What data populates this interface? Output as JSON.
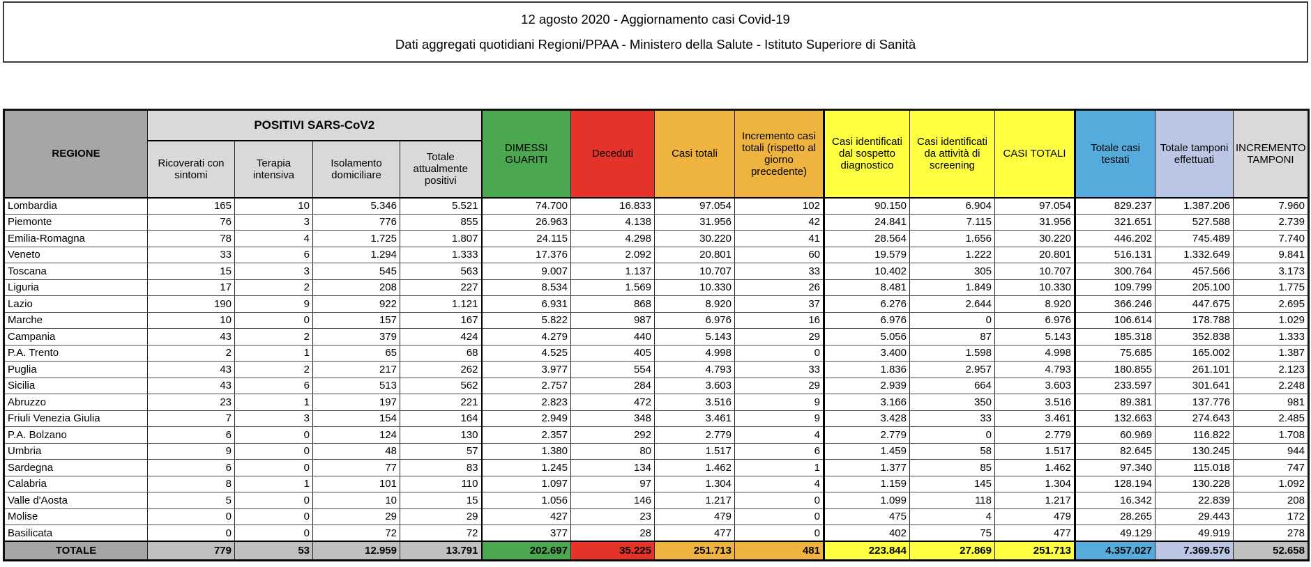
{
  "title": {
    "line1": "12 agosto 2020 - Aggiornamento casi Covid-19",
    "line2": "Dati aggregati quotidiani Regioni/PPAA - Ministero della Salute - Istituto Superiore di Sanità"
  },
  "colors": {
    "green": "#4CA751",
    "red": "#E5332A",
    "orange": "#EFB440",
    "yellow": "#FDFF40",
    "blue": "#55ACDC",
    "lavender": "#BAC6E3",
    "hdrgray": "#D9D9D9",
    "darkgray": "#A6A6A6",
    "totgray": "#BFBFBF"
  },
  "chart_data": {
    "type": "table",
    "title": "12 agosto 2020 - Aggiornamento casi Covid-19",
    "group_header": "POSITIVI SARS-CoV2",
    "columns": [
      {
        "label": "REGIONE"
      },
      {
        "label": "Ricoverati con sintomi"
      },
      {
        "label": "Terapia intensiva"
      },
      {
        "label": "Isolamento domiciliare"
      },
      {
        "label": "Totale attualmente positivi"
      },
      {
        "label": "DIMESSI GUARITI"
      },
      {
        "label": "Deceduti"
      },
      {
        "label": "Casi totali"
      },
      {
        "label": "Incremento casi totali (rispetto al giorno precedente)"
      },
      {
        "label": "Casi identificati dal sospetto diagnostico"
      },
      {
        "label": "Casi identificati da attività di screening"
      },
      {
        "label": "CASI TOTALI"
      },
      {
        "label": "Totale casi testati"
      },
      {
        "label": "Totale tamponi effettuati"
      },
      {
        "label": "INCREMENTO TAMPONI"
      }
    ],
    "rows": [
      [
        "Lombardia",
        "165",
        "10",
        "5.346",
        "5.521",
        "74.700",
        "16.833",
        "97.054",
        "102",
        "90.150",
        "6.904",
        "97.054",
        "829.237",
        "1.387.206",
        "7.960"
      ],
      [
        "Piemonte",
        "76",
        "3",
        "776",
        "855",
        "26.963",
        "4.138",
        "31.956",
        "42",
        "24.841",
        "7.115",
        "31.956",
        "321.651",
        "527.588",
        "2.739"
      ],
      [
        "Emilia-Romagna",
        "78",
        "4",
        "1.725",
        "1.807",
        "24.115",
        "4.298",
        "30.220",
        "41",
        "28.564",
        "1.656",
        "30.220",
        "446.202",
        "745.489",
        "7.740"
      ],
      [
        "Veneto",
        "33",
        "6",
        "1.294",
        "1.333",
        "17.376",
        "2.092",
        "20.801",
        "60",
        "19.579",
        "1.222",
        "20.801",
        "516.131",
        "1.332.649",
        "9.841"
      ],
      [
        "Toscana",
        "15",
        "3",
        "545",
        "563",
        "9.007",
        "1.137",
        "10.707",
        "33",
        "10.402",
        "305",
        "10.707",
        "300.764",
        "457.566",
        "3.173"
      ],
      [
        "Liguria",
        "17",
        "2",
        "208",
        "227",
        "8.534",
        "1.569",
        "10.330",
        "26",
        "8.481",
        "1.849",
        "10.330",
        "109.799",
        "205.100",
        "1.775"
      ],
      [
        "Lazio",
        "190",
        "9",
        "922",
        "1.121",
        "6.931",
        "868",
        "8.920",
        "37",
        "6.276",
        "2.644",
        "8.920",
        "366.246",
        "447.675",
        "2.695"
      ],
      [
        "Marche",
        "10",
        "0",
        "157",
        "167",
        "5.822",
        "987",
        "6.976",
        "16",
        "6.976",
        "0",
        "6.976",
        "106.614",
        "178.788",
        "1.029"
      ],
      [
        "Campania",
        "43",
        "2",
        "379",
        "424",
        "4.279",
        "440",
        "5.143",
        "29",
        "5.056",
        "87",
        "5.143",
        "185.318",
        "352.838",
        "1.333"
      ],
      [
        "P.A. Trento",
        "2",
        "1",
        "65",
        "68",
        "4.525",
        "405",
        "4.998",
        "0",
        "3.400",
        "1.598",
        "4.998",
        "75.685",
        "165.002",
        "1.387"
      ],
      [
        "Puglia",
        "43",
        "2",
        "217",
        "262",
        "3.977",
        "554",
        "4.793",
        "33",
        "1.836",
        "2.957",
        "4.793",
        "180.855",
        "261.101",
        "2.123"
      ],
      [
        "Sicilia",
        "43",
        "6",
        "513",
        "562",
        "2.757",
        "284",
        "3.603",
        "29",
        "2.939",
        "664",
        "3.603",
        "233.597",
        "301.641",
        "2.248"
      ],
      [
        "Abruzzo",
        "23",
        "1",
        "197",
        "221",
        "2.823",
        "472",
        "3.516",
        "9",
        "3.166",
        "350",
        "3.516",
        "89.381",
        "137.776",
        "981"
      ],
      [
        "Friuli Venezia Giulia",
        "7",
        "3",
        "154",
        "164",
        "2.949",
        "348",
        "3.461",
        "9",
        "3.428",
        "33",
        "3.461",
        "132.663",
        "274.643",
        "2.485"
      ],
      [
        "P.A. Bolzano",
        "6",
        "0",
        "124",
        "130",
        "2.357",
        "292",
        "2.779",
        "4",
        "2.779",
        "0",
        "2.779",
        "60.969",
        "116.822",
        "1.708"
      ],
      [
        "Umbria",
        "9",
        "0",
        "48",
        "57",
        "1.380",
        "80",
        "1.517",
        "6",
        "1.459",
        "58",
        "1.517",
        "82.645",
        "130.245",
        "944"
      ],
      [
        "Sardegna",
        "6",
        "0",
        "77",
        "83",
        "1.245",
        "134",
        "1.462",
        "1",
        "1.377",
        "85",
        "1.462",
        "97.340",
        "115.018",
        "747"
      ],
      [
        "Calabria",
        "8",
        "1",
        "101",
        "110",
        "1.097",
        "97",
        "1.304",
        "4",
        "1.159",
        "145",
        "1.304",
        "128.194",
        "130.228",
        "1.092"
      ],
      [
        "Valle d'Aosta",
        "5",
        "0",
        "10",
        "15",
        "1.056",
        "146",
        "1.217",
        "0",
        "1.099",
        "118",
        "1.217",
        "16.342",
        "22.839",
        "208"
      ],
      [
        "Molise",
        "0",
        "0",
        "29",
        "29",
        "427",
        "23",
        "479",
        "0",
        "475",
        "4",
        "479",
        "28.265",
        "29.443",
        "172"
      ],
      [
        "Basilicata",
        "0",
        "0",
        "72",
        "72",
        "377",
        "28",
        "477",
        "0",
        "402",
        "75",
        "477",
        "49.129",
        "49.919",
        "278"
      ]
    ],
    "total_row": [
      "TOTALE",
      "779",
      "53",
      "12.959",
      "13.791",
      "202.697",
      "35.225",
      "251.713",
      "481",
      "223.844",
      "27.869",
      "251.713",
      "4.357.027",
      "7.369.576",
      "52.658"
    ]
  }
}
